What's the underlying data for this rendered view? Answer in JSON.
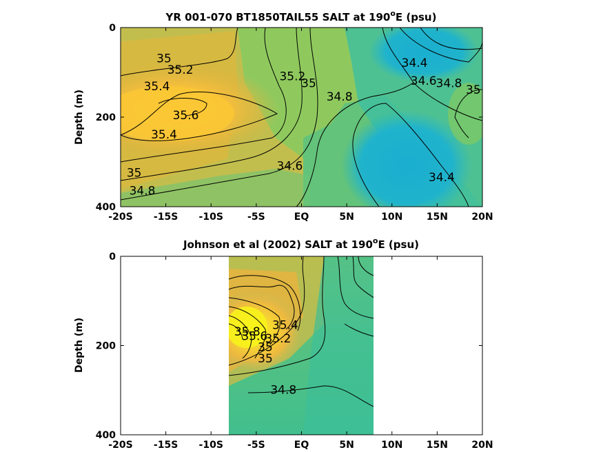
{
  "chart_data": [
    {
      "type": "contour",
      "title": "YR 001-070 BT1850TAIL55 SALT at 190",
      "title_sup": "o",
      "title_suffix": "E (psu)",
      "xlabel": "",
      "ylabel": "Depth (m)",
      "x_ticks": [
        "-20S",
        "-15S",
        "-10S",
        "-5S",
        "EQ",
        "5N",
        "10N",
        "15N",
        "20N"
      ],
      "y_ticks": [
        "0",
        "200",
        "400"
      ],
      "xlim": [
        -20,
        20
      ],
      "ylim": [
        0,
        400
      ],
      "contour_labels": [
        {
          "text": "35",
          "lat": -15.2,
          "depth": 70
        },
        {
          "text": "35.2",
          "lat": -13.4,
          "depth": 95
        },
        {
          "text": "35.4",
          "lat": -16.0,
          "depth": 132
        },
        {
          "text": "35.6",
          "lat": -12.8,
          "depth": 197
        },
        {
          "text": "35.4",
          "lat": -15.2,
          "depth": 240
        },
        {
          "text": "35",
          "lat": -18.5,
          "depth": 325
        },
        {
          "text": "34.8",
          "lat": -17.6,
          "depth": 365
        },
        {
          "text": "35.2",
          "lat": -1.0,
          "depth": 110
        },
        {
          "text": "35",
          "lat": 0.8,
          "depth": 125
        },
        {
          "text": "34.8",
          "lat": 4.2,
          "depth": 155
        },
        {
          "text": "34.6",
          "lat": -1.3,
          "depth": 310
        },
        {
          "text": "34.4",
          "lat": 12.5,
          "depth": 80
        },
        {
          "text": "34.6",
          "lat": 13.5,
          "depth": 120
        },
        {
          "text": "34.8",
          "lat": 16.3,
          "depth": 125
        },
        {
          "text": "35",
          "lat": 19.0,
          "depth": 140
        },
        {
          "text": "34.4",
          "lat": 15.5,
          "depth": 335
        }
      ]
    },
    {
      "type": "contour",
      "title": "Johnson et al (2002) SALT at 190",
      "title_sup": "o",
      "title_suffix": "E (psu)",
      "xlabel": "",
      "ylabel": "Depth (m)",
      "x_ticks": [
        "-20S",
        "-15S",
        "-10S",
        "-5S",
        "EQ",
        "5N",
        "10N",
        "15N",
        "20N"
      ],
      "y_ticks": [
        "0",
        "200",
        "400"
      ],
      "xlim": [
        -20,
        20
      ],
      "ylim": [
        0,
        400
      ],
      "data_lat_range": [
        -8,
        8
      ],
      "contour_labels": [
        {
          "text": "35.4",
          "lat": -1.8,
          "depth": 155
        },
        {
          "text": "35.2",
          "lat": -2.6,
          "depth": 185
        },
        {
          "text": "35",
          "lat": -4.0,
          "depth": 230
        },
        {
          "text": "35",
          "lat": -4.0,
          "depth": 205
        },
        {
          "text": "35.6",
          "lat": -5.2,
          "depth": 180
        },
        {
          "text": "35.8",
          "lat": -6.0,
          "depth": 170
        },
        {
          "text": "34.8",
          "lat": -2.0,
          "depth": 300
        }
      ]
    }
  ]
}
